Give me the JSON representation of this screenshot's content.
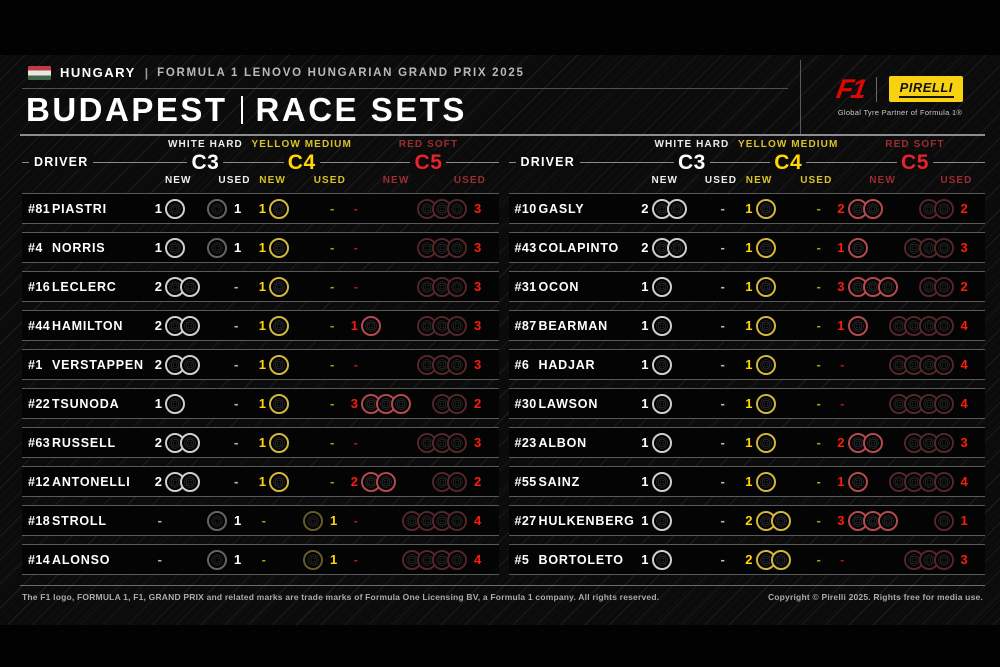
{
  "header": {
    "flag": "hungary-flag",
    "country": "HUNGARY",
    "sep": "|",
    "event": "FORMULA 1 LENOVO HUNGARIAN GRAND PRIX 2025",
    "title_city": "BUDAPEST",
    "title_type": "RACE SETS",
    "f1_logo": "F1",
    "pirelli_logo": "PIRELLI",
    "pirelli_caption": "Global Tyre Partner of Formula 1®"
  },
  "columns": {
    "driver": "DRIVER",
    "new_label": "NEW",
    "used_label": "USED",
    "compounds": [
      {
        "key": "c3",
        "name": "WHITE HARD",
        "grade": "C3",
        "label_color": "#ededed",
        "grade_color": "#ffffff",
        "count_color": "#ffffff",
        "ring_new": "#cfcfcf",
        "ring_used": "#6f6f6f"
      },
      {
        "key": "c4",
        "name": "YELLOW MEDIUM",
        "grade": "C4",
        "label_color": "#d8c227",
        "grade_color": "#ffd702",
        "count_color": "#ffd702",
        "ring_new": "#d3b73c",
        "ring_used": "#6e652f"
      },
      {
        "key": "c5",
        "name": "RED SOFT",
        "grade": "C5",
        "label_color": "#9c2d31",
        "grade_color": "#e8232d",
        "count_color": "#fb1c0c",
        "ring_new": "#b4494f",
        "ring_used": "#5c2a2e"
      }
    ]
  },
  "chart_data": {
    "type": "table",
    "title": "BUDAPEST | RACE SETS",
    "column_groups": [
      "WHITE HARD C3",
      "YELLOW MEDIUM C4",
      "RED SOFT C5"
    ],
    "sub_columns": [
      "NEW",
      "USED"
    ],
    "tables": [
      {
        "rows": [
          {
            "num": "#81",
            "name": "PIASTRI",
            "c3_new": 1,
            "c3_used": 1,
            "c4_new": 1,
            "c4_used": 0,
            "c5_new": 0,
            "c5_used": 3
          },
          {
            "num": "#4",
            "name": "NORRIS",
            "c3_new": 1,
            "c3_used": 1,
            "c4_new": 1,
            "c4_used": 0,
            "c5_new": 0,
            "c5_used": 3
          },
          {
            "num": "#16",
            "name": "LECLERC",
            "c3_new": 2,
            "c3_used": 0,
            "c4_new": 1,
            "c4_used": 0,
            "c5_new": 0,
            "c5_used": 3
          },
          {
            "num": "#44",
            "name": "HAMILTON",
            "c3_new": 2,
            "c3_used": 0,
            "c4_new": 1,
            "c4_used": 0,
            "c5_new": 1,
            "c5_used": 3
          },
          {
            "num": "#1",
            "name": "VERSTAPPEN",
            "c3_new": 2,
            "c3_used": 0,
            "c4_new": 1,
            "c4_used": 0,
            "c5_new": 0,
            "c5_used": 3
          },
          {
            "num": "#22",
            "name": "TSUNODA",
            "c3_new": 1,
            "c3_used": 0,
            "c4_new": 1,
            "c4_used": 0,
            "c5_new": 3,
            "c5_used": 2
          },
          {
            "num": "#63",
            "name": "RUSSELL",
            "c3_new": 2,
            "c3_used": 0,
            "c4_new": 1,
            "c4_used": 0,
            "c5_new": 0,
            "c5_used": 3
          },
          {
            "num": "#12",
            "name": "ANTONELLI",
            "c3_new": 2,
            "c3_used": 0,
            "c4_new": 1,
            "c4_used": 0,
            "c5_new": 2,
            "c5_used": 2
          },
          {
            "num": "#18",
            "name": "STROLL",
            "c3_new": 0,
            "c3_used": 1,
            "c4_new": 0,
            "c4_used": 1,
            "c5_new": 0,
            "c5_used": 4
          },
          {
            "num": "#14",
            "name": "ALONSO",
            "c3_new": 0,
            "c3_used": 1,
            "c4_new": 0,
            "c4_used": 1,
            "c5_new": 0,
            "c5_used": 4
          }
        ]
      },
      {
        "rows": [
          {
            "num": "#10",
            "name": "GASLY",
            "c3_new": 2,
            "c3_used": 0,
            "c4_new": 1,
            "c4_used": 0,
            "c5_new": 2,
            "c5_used": 2
          },
          {
            "num": "#43",
            "name": "COLAPINTO",
            "c3_new": 2,
            "c3_used": 0,
            "c4_new": 1,
            "c4_used": 0,
            "c5_new": 1,
            "c5_used": 3
          },
          {
            "num": "#31",
            "name": "OCON",
            "c3_new": 1,
            "c3_used": 0,
            "c4_new": 1,
            "c4_used": 0,
            "c5_new": 3,
            "c5_used": 2
          },
          {
            "num": "#87",
            "name": "BEARMAN",
            "c3_new": 1,
            "c3_used": 0,
            "c4_new": 1,
            "c4_used": 0,
            "c5_new": 1,
            "c5_used": 4
          },
          {
            "num": "#6",
            "name": "HADJAR",
            "c3_new": 1,
            "c3_used": 0,
            "c4_new": 1,
            "c4_used": 0,
            "c5_new": 0,
            "c5_used": 4
          },
          {
            "num": "#30",
            "name": "LAWSON",
            "c3_new": 1,
            "c3_used": 0,
            "c4_new": 1,
            "c4_used": 0,
            "c5_new": 0,
            "c5_used": 4
          },
          {
            "num": "#23",
            "name": "ALBON",
            "c3_new": 1,
            "c3_used": 0,
            "c4_new": 1,
            "c4_used": 0,
            "c5_new": 2,
            "c5_used": 3
          },
          {
            "num": "#55",
            "name": "SAINZ",
            "c3_new": 1,
            "c3_used": 0,
            "c4_new": 1,
            "c4_used": 0,
            "c5_new": 1,
            "c5_used": 4
          },
          {
            "num": "#27",
            "name": "HULKENBERG",
            "c3_new": 1,
            "c3_used": 0,
            "c4_new": 2,
            "c4_used": 0,
            "c5_new": 3,
            "c5_used": 1
          },
          {
            "num": "#5",
            "name": "BORTOLETO",
            "c3_new": 1,
            "c3_used": 0,
            "c4_new": 2,
            "c4_used": 0,
            "c5_new": 0,
            "c5_used": 3
          }
        ]
      }
    ]
  },
  "footer": {
    "left": "The F1 logo, FORMULA 1, F1, GRAND PRIX and related marks are trade marks of Formula One Licensing BV, a Formula 1 company. All rights reserved.",
    "right": "Copyright © Pirelli 2025. Rights free for media use."
  }
}
